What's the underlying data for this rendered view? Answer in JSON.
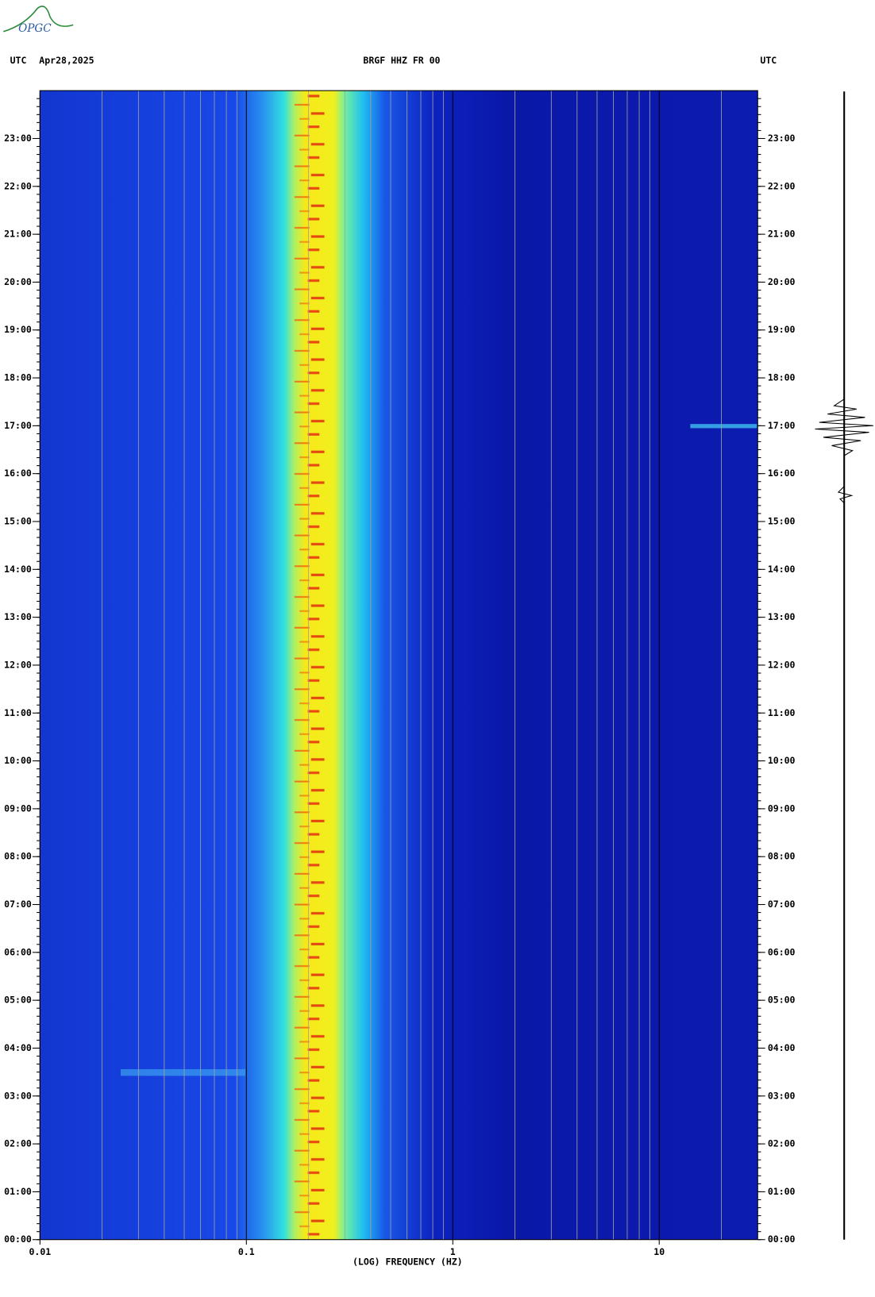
{
  "logo": "OPGC",
  "header": {
    "left_zone": "UTC",
    "date": "Apr28,2025",
    "station": "BRGF HHZ FR 00",
    "right_zone": "UTC"
  },
  "chart_data": {
    "type": "spectrogram",
    "x_label": "(LOG) FREQUENCY (HZ)",
    "xscale": "log",
    "xlim": [
      0.01,
      30
    ],
    "xticks": [
      {
        "value": 0.01,
        "label": "0.01"
      },
      {
        "value": 0.1,
        "label": "0.1"
      },
      1,
      10
    ],
    "ylim": [
      0,
      24
    ],
    "yticks": [
      {
        "value": 0,
        "label": "00:00"
      },
      {
        "value": 1,
        "label": "01:00"
      },
      {
        "value": 2,
        "label": "02:00"
      },
      {
        "value": 3,
        "label": "03:00"
      },
      {
        "value": 4,
        "label": "04:00"
      },
      {
        "value": 5,
        "label": "05:00"
      },
      {
        "value": 6,
        "label": "06:00"
      },
      {
        "value": 7,
        "label": "07:00"
      },
      {
        "value": 8,
        "label": "08:00"
      },
      {
        "value": 9,
        "label": "09:00"
      },
      {
        "value": 10,
        "label": "10:00"
      },
      {
        "value": 11,
        "label": "11:00"
      },
      {
        "value": 12,
        "label": "12:00"
      },
      {
        "value": 13,
        "label": "13:00"
      },
      {
        "value": 14,
        "label": "14:00"
      },
      {
        "value": 15,
        "label": "15:00"
      },
      {
        "value": 16,
        "label": "16:00"
      },
      {
        "value": 17,
        "label": "17:00"
      },
      {
        "value": 18,
        "label": "18:00"
      },
      {
        "value": 19,
        "label": "19:00"
      },
      {
        "value": 20,
        "label": "20:00"
      },
      {
        "value": 21,
        "label": "21:00"
      },
      {
        "value": 22,
        "label": "22:00"
      },
      {
        "value": 23,
        "label": "23:00"
      }
    ],
    "grid": true
  }
}
